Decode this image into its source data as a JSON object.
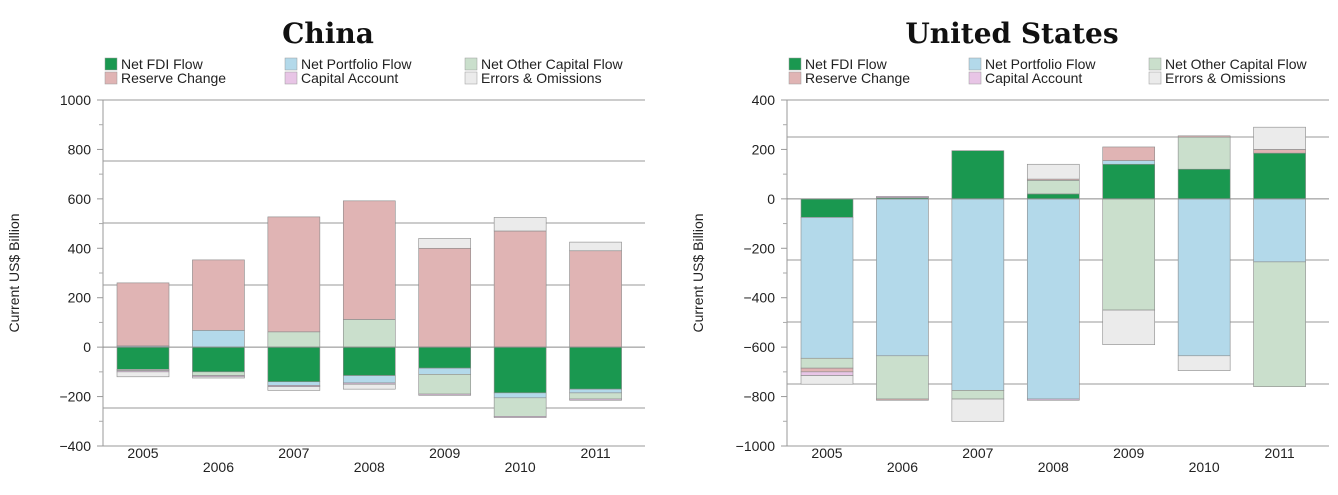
{
  "colors": {
    "Net FDI Flow": "#1a9850",
    "Reserve Change": "#e0b4b4",
    "Net Portfolio Flow": "#b3d9ea",
    "Capital Account": "#e8c5e6",
    "Net Other Capital Flow": "#cadfcc",
    "Errors & Omissions": "#ebebeb"
  },
  "chart_data": [
    {
      "type": "bar",
      "stacked": true,
      "title": "China",
      "ylabel": "Current US$ Billion",
      "ylim": [
        -400,
        1000
      ],
      "yticks": [
        -400,
        -200,
        0,
        200,
        400,
        600,
        800,
        1000
      ],
      "categories": [
        "2005",
        "2006",
        "2007",
        "2008",
        "2009",
        "2010",
        "2011"
      ],
      "legend": [
        "Net FDI Flow",
        "Net Portfolio Flow",
        "Net Other Capital Flow",
        "Reserve Change",
        "Capital Account",
        "Errors & Omissions"
      ],
      "series": [
        {
          "name": "Net FDI Flow",
          "values": [
            -90,
            -100,
            -140,
            -115,
            -85,
            -185,
            -170
          ]
        },
        {
          "name": "Net Portfolio Flow",
          "values": [
            5,
            68,
            -15,
            -30,
            -25,
            -20,
            -15
          ]
        },
        {
          "name": "Net Other Capital Flow",
          "values": [
            -5,
            -15,
            62,
            112,
            -80,
            -75,
            -25
          ]
        },
        {
          "name": "Reserve Change",
          "values": [
            255,
            285,
            465,
            480,
            400,
            470,
            390
          ]
        },
        {
          "name": "Capital Account",
          "values": [
            -5,
            -5,
            -5,
            -5,
            -5,
            -5,
            -5
          ]
        },
        {
          "name": "Errors & Omissions",
          "values": [
            -20,
            -5,
            -15,
            -20,
            40,
            55,
            35
          ]
        }
      ]
    },
    {
      "type": "bar",
      "stacked": true,
      "title": "United States",
      "ylabel": "Current US$ Billion",
      "ylim": [
        -1000,
        400
      ],
      "yticks": [
        -1000,
        -800,
        -600,
        -400,
        -200,
        0,
        200,
        400
      ],
      "categories": [
        "2005",
        "2006",
        "2007",
        "2008",
        "2009",
        "2010",
        "2011"
      ],
      "legend": [
        "Net FDI Flow",
        "Net Portfolio Flow",
        "Net Other Capital Flow",
        "Reserve Change",
        "Capital Account",
        "Errors & Omissions"
      ],
      "series": [
        {
          "name": "Net FDI Flow",
          "values": [
            -75,
            5,
            195,
            20,
            140,
            120,
            185
          ]
        },
        {
          "name": "Net Portfolio Flow",
          "values": [
            -570,
            -635,
            -775,
            -810,
            15,
            -635,
            -255
          ]
        },
        {
          "name": "Net Other Capital Flow",
          "values": [
            -40,
            -175,
            -35,
            55,
            -450,
            130,
            -505
          ]
        },
        {
          "name": "Reserve Change",
          "values": [
            -15,
            -5,
            0,
            5,
            55,
            5,
            15
          ]
        },
        {
          "name": "Capital Account",
          "values": [
            -15,
            5,
            0,
            -5,
            0,
            0,
            0
          ]
        },
        {
          "name": "Errors & Omissions",
          "values": [
            -35,
            0,
            -90,
            60,
            -140,
            -60,
            90
          ]
        }
      ]
    }
  ]
}
